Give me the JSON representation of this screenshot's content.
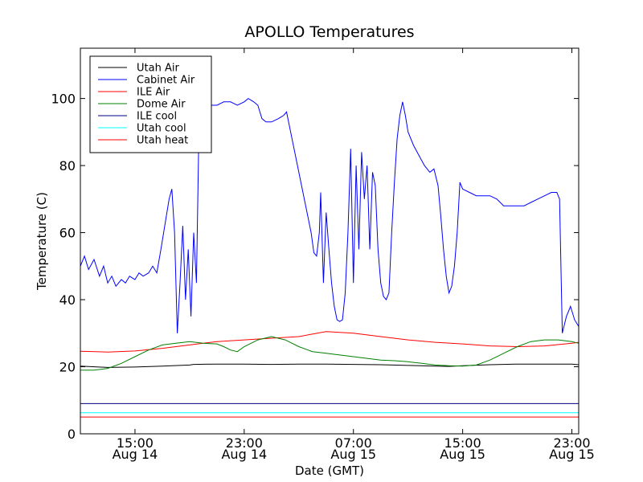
{
  "chart_data": {
    "type": "line",
    "title": "APOLLO Temperatures",
    "xlabel": "Date (GMT)",
    "ylabel": "Temperature (C)",
    "x_unit": "hours since Aug 14 11:00 GMT",
    "xlim": [
      0,
      36.5
    ],
    "ylim": [
      0,
      115
    ],
    "yticks": [
      0,
      20,
      40,
      60,
      80,
      100
    ],
    "ytick_labels": [
      "0",
      "20",
      "40",
      "60",
      "80",
      "100"
    ],
    "xticks": [
      {
        "x": 4,
        "time": "15:00",
        "date": "Aug 14"
      },
      {
        "x": 12,
        "time": "23:00",
        "date": "Aug 14"
      },
      {
        "x": 20,
        "time": "07:00",
        "date": "Aug 15"
      },
      {
        "x": 28,
        "time": "15:00",
        "date": "Aug 15"
      },
      {
        "x": 36,
        "time": "23:00",
        "date": "Aug 15"
      }
    ],
    "legend_position": "top-left",
    "series": [
      {
        "name": "Utah Air",
        "color": "#000000",
        "points": [
          [
            0,
            20.2
          ],
          [
            2,
            19.8
          ],
          [
            4,
            19.9
          ],
          [
            6,
            20.2
          ],
          [
            8,
            20.5
          ],
          [
            8.3,
            20.7
          ],
          [
            10,
            20.8
          ],
          [
            12,
            20.8
          ],
          [
            14,
            20.7
          ],
          [
            16,
            20.8
          ],
          [
            18,
            20.8
          ],
          [
            20,
            20.7
          ],
          [
            22,
            20.6
          ],
          [
            24,
            20.4
          ],
          [
            26,
            20.2
          ],
          [
            27,
            20.1
          ],
          [
            28,
            20.3
          ],
          [
            30,
            20.6
          ],
          [
            32,
            20.8
          ],
          [
            34,
            20.8
          ],
          [
            36,
            20.8
          ],
          [
            36.5,
            20.6
          ]
        ]
      },
      {
        "name": "Cabinet Air",
        "color": "#0000ff",
        "points": [
          [
            0,
            50
          ],
          [
            0.3,
            53
          ],
          [
            0.6,
            49
          ],
          [
            1,
            52
          ],
          [
            1.4,
            47
          ],
          [
            1.7,
            50
          ],
          [
            2,
            45
          ],
          [
            2.3,
            47
          ],
          [
            2.6,
            44
          ],
          [
            3,
            46
          ],
          [
            3.3,
            45
          ],
          [
            3.6,
            47
          ],
          [
            4,
            46
          ],
          [
            4.3,
            48
          ],
          [
            4.6,
            47
          ],
          [
            5,
            48
          ],
          [
            5.3,
            50
          ],
          [
            5.6,
            48
          ],
          [
            5.9,
            55
          ],
          [
            6.1,
            60
          ],
          [
            6.3,
            65
          ],
          [
            6.5,
            70
          ],
          [
            6.7,
            73
          ],
          [
            6.9,
            60
          ],
          [
            7.1,
            30
          ],
          [
            7.3,
            45
          ],
          [
            7.5,
            62
          ],
          [
            7.7,
            40
          ],
          [
            7.9,
            55
          ],
          [
            8.1,
            35
          ],
          [
            8.3,
            60
          ],
          [
            8.5,
            45
          ],
          [
            8.7,
            95
          ],
          [
            8.9,
            97
          ],
          [
            9.5,
            98
          ],
          [
            10,
            98
          ],
          [
            10.5,
            99
          ],
          [
            11,
            99
          ],
          [
            11.5,
            98
          ],
          [
            12,
            99
          ],
          [
            12.3,
            100
          ],
          [
            12.7,
            99
          ],
          [
            13,
            98
          ],
          [
            13.3,
            94
          ],
          [
            13.6,
            93
          ],
          [
            14,
            93
          ],
          [
            14.5,
            94
          ],
          [
            14.9,
            95
          ],
          [
            15.1,
            96
          ],
          [
            15.5,
            88
          ],
          [
            16,
            78
          ],
          [
            16.5,
            68
          ],
          [
            16.9,
            60
          ],
          [
            17.1,
            54
          ],
          [
            17.3,
            53
          ],
          [
            17.5,
            60
          ],
          [
            17.6,
            72
          ],
          [
            17.8,
            45
          ],
          [
            18,
            66
          ],
          [
            18.2,
            55
          ],
          [
            18.4,
            45
          ],
          [
            18.6,
            38
          ],
          [
            18.8,
            34
          ],
          [
            19,
            33.5
          ],
          [
            19.2,
            34
          ],
          [
            19.4,
            42
          ],
          [
            19.6,
            60
          ],
          [
            19.8,
            85
          ],
          [
            20,
            45
          ],
          [
            20.2,
            80
          ],
          [
            20.4,
            55
          ],
          [
            20.6,
            84
          ],
          [
            20.8,
            70
          ],
          [
            21,
            80
          ],
          [
            21.2,
            55
          ],
          [
            21.4,
            78
          ],
          [
            21.6,
            74
          ],
          [
            21.8,
            55
          ],
          [
            22,
            45
          ],
          [
            22.2,
            41
          ],
          [
            22.4,
            40
          ],
          [
            22.6,
            42
          ],
          [
            22.8,
            60
          ],
          [
            23,
            75
          ],
          [
            23.2,
            88
          ],
          [
            23.4,
            95
          ],
          [
            23.6,
            99
          ],
          [
            23.8,
            95
          ],
          [
            24,
            90
          ],
          [
            24.4,
            86
          ],
          [
            24.8,
            83
          ],
          [
            25.2,
            80
          ],
          [
            25.6,
            78
          ],
          [
            25.9,
            79
          ],
          [
            26.2,
            74
          ],
          [
            26.4,
            65
          ],
          [
            26.6,
            55
          ],
          [
            26.8,
            47
          ],
          [
            27,
            42
          ],
          [
            27.2,
            44
          ],
          [
            27.4,
            50
          ],
          [
            27.6,
            60
          ],
          [
            27.8,
            75
          ],
          [
            28,
            73
          ],
          [
            28.5,
            72
          ],
          [
            29,
            71
          ],
          [
            29.5,
            71
          ],
          [
            30,
            71
          ],
          [
            30.5,
            70
          ],
          [
            31,
            68
          ],
          [
            31.5,
            68
          ],
          [
            32,
            68
          ],
          [
            32.5,
            68
          ],
          [
            33,
            69
          ],
          [
            33.5,
            70
          ],
          [
            34,
            71
          ],
          [
            34.5,
            72
          ],
          [
            34.9,
            72
          ],
          [
            35.1,
            70
          ],
          [
            35.3,
            30
          ],
          [
            35.6,
            35
          ],
          [
            35.9,
            38
          ],
          [
            36.2,
            34
          ],
          [
            36.5,
            32
          ]
        ]
      },
      {
        "name": "ILE Air",
        "color": "#ff0000",
        "points": [
          [
            0,
            24.6
          ],
          [
            2,
            24.4
          ],
          [
            4,
            24.7
          ],
          [
            6,
            25.5
          ],
          [
            8,
            26.5
          ],
          [
            10,
            27.5
          ],
          [
            12,
            28.0
          ],
          [
            14,
            28.5
          ],
          [
            16,
            29.0
          ],
          [
            18,
            30.5
          ],
          [
            20,
            30.0
          ],
          [
            22,
            29.0
          ],
          [
            24,
            28.0
          ],
          [
            26,
            27.3
          ],
          [
            28,
            26.8
          ],
          [
            30,
            26.2
          ],
          [
            32,
            26.0
          ],
          [
            34,
            26.2
          ],
          [
            36,
            27.0
          ],
          [
            36.5,
            27.3
          ]
        ]
      },
      {
        "name": "Dome Air",
        "color": "#008000",
        "points": [
          [
            0,
            19
          ],
          [
            1,
            19
          ],
          [
            2,
            19.5
          ],
          [
            3,
            21
          ],
          [
            4,
            23
          ],
          [
            5,
            25
          ],
          [
            6,
            26.5
          ],
          [
            7,
            27
          ],
          [
            8,
            27.5
          ],
          [
            9,
            27
          ],
          [
            10,
            26.8
          ],
          [
            10.5,
            26
          ],
          [
            11,
            25
          ],
          [
            11.5,
            24.5
          ],
          [
            12,
            26
          ],
          [
            13,
            28
          ],
          [
            14,
            29
          ],
          [
            15,
            28
          ],
          [
            16,
            26
          ],
          [
            17,
            24.5
          ],
          [
            18,
            24
          ],
          [
            19,
            23.5
          ],
          [
            20,
            23
          ],
          [
            21,
            22.5
          ],
          [
            22,
            22
          ],
          [
            23,
            21.8
          ],
          [
            24,
            21.5
          ],
          [
            25,
            21
          ],
          [
            26,
            20.5
          ],
          [
            27,
            20.3
          ],
          [
            28,
            20.2
          ],
          [
            29,
            20.5
          ],
          [
            30,
            22
          ],
          [
            31,
            24
          ],
          [
            32,
            26
          ],
          [
            33,
            27.5
          ],
          [
            34,
            28
          ],
          [
            35,
            28
          ],
          [
            36,
            27.5
          ],
          [
            36.5,
            27
          ]
        ]
      },
      {
        "name": "ILE cool",
        "color": "#000080",
        "points": [
          [
            0,
            9
          ],
          [
            36.5,
            9
          ]
        ]
      },
      {
        "name": "Utah cool",
        "color": "#00ffff",
        "points": [
          [
            0,
            6.3
          ],
          [
            36.5,
            6.3
          ]
        ]
      },
      {
        "name": "Utah heat",
        "color": "#ff0000",
        "points": [
          [
            0,
            5
          ],
          [
            36.5,
            5
          ]
        ]
      }
    ]
  }
}
